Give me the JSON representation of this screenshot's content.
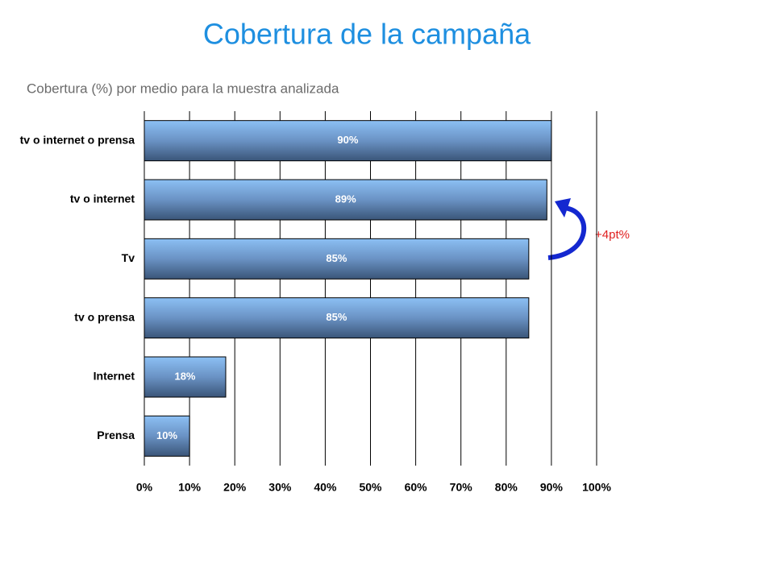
{
  "chart_data": {
    "type": "hbar",
    "title": "Cobertura de la campaña",
    "subtitle": "Cobertura (%) por medio para la muestra analizada",
    "annotation": "+4pt%",
    "categories": [
      "tv o internet o prensa",
      "tv o internet",
      "Tv",
      "tv o prensa",
      "Internet",
      "Prensa"
    ],
    "values": [
      90,
      89,
      85,
      85,
      18,
      10
    ],
    "value_labels": [
      "90%",
      "89%",
      "85%",
      "85%",
      "18%",
      "10%"
    ],
    "color": "#8cc0f4",
    "xlim": [
      0,
      100
    ],
    "xticks": [
      {
        "value": 0,
        "label": "0%"
      },
      {
        "value": 10,
        "label": "10%"
      },
      {
        "value": 20,
        "label": "20%"
      },
      {
        "value": 30,
        "label": "30%"
      },
      {
        "value": 40,
        "label": "40%"
      },
      {
        "value": 50,
        "label": "50%"
      },
      {
        "value": 60,
        "label": "60%"
      },
      {
        "value": 70,
        "label": "70%"
      },
      {
        "value": 80,
        "label": "80%"
      },
      {
        "value": 90,
        "label": "90%"
      },
      {
        "value": 100,
        "label": "100%"
      }
    ],
    "grid": true
  }
}
